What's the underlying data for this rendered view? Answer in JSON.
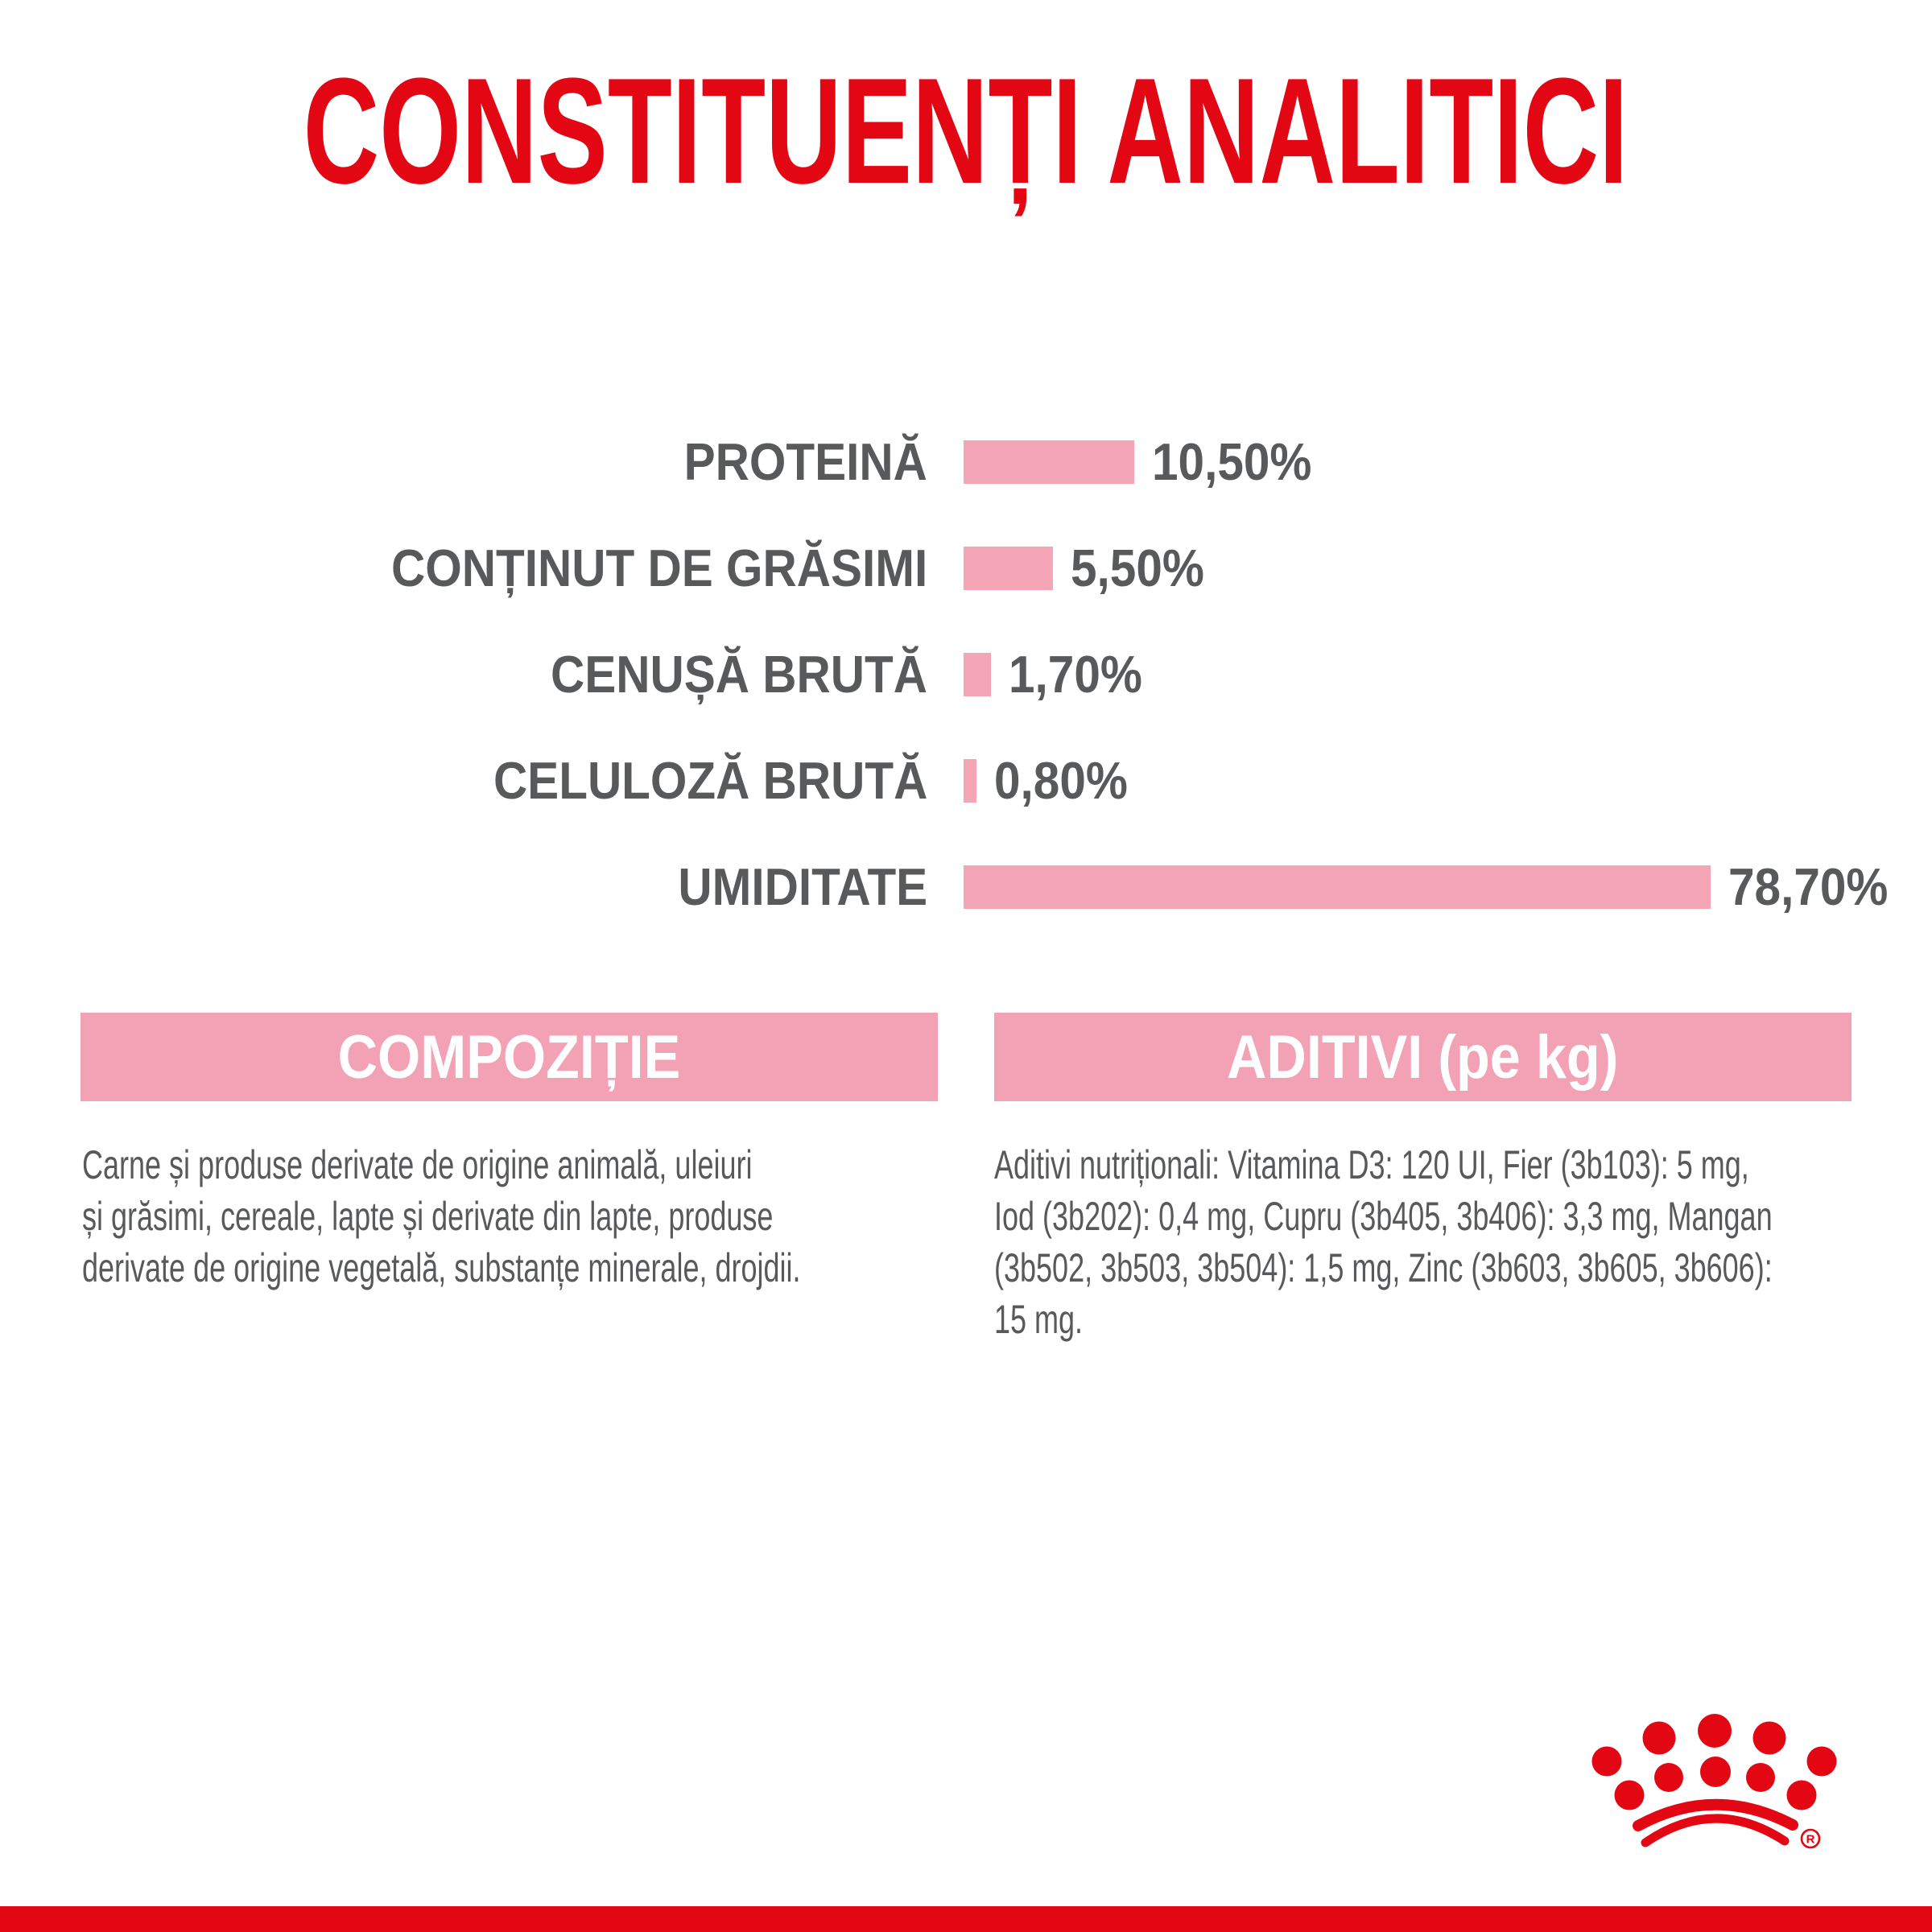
{
  "page": {
    "title": "CONSTITUENȚI ANALITICI"
  },
  "colors": {
    "accent_red": "#E30613",
    "bar_pink": "#F4A6B7",
    "header_pink": "#F2A2B4",
    "text_gray": "#58595B",
    "header_text_white": "#FFFFFF",
    "background": "#FFFFFF"
  },
  "chart_data": {
    "type": "bar",
    "orientation": "horizontal",
    "title": "CONSTITUENȚI ANALITICI",
    "categories": [
      "PROTEINĂ",
      "CONȚINUT DE GRĂSIMI",
      "CENUȘĂ BRUTĂ",
      "CELULOZĂ BRUTĂ",
      "UMIDITATE"
    ],
    "values": [
      10.5,
      5.5,
      1.7,
      0.8,
      78.7
    ],
    "value_labels": [
      "10,50%",
      "5,50%",
      "1,70%",
      "0,80%",
      "78,70%"
    ],
    "unit": "%",
    "bar_color": "#F4A6B7",
    "axes": "none",
    "gridlines": false,
    "legend": "none",
    "value_label_position": "right-of-bar",
    "note": "bar lengths proportional except UMIDITATE bar visually capped"
  },
  "sections": {
    "composition": {
      "header": "COMPOZIȚIE",
      "lines": [
        "Carne și produse derivate de origine animală, uleiuri",
        "și grăsimi, cereale, lapte și derivate din lapte, produse",
        "derivate de origine vegetală, substanțe minerale, drojdii."
      ]
    },
    "additives": {
      "header": "ADITIVI (pe kg)",
      "lines": [
        "Aditivi nutriționali: Vitamina D3: 120 UI, Fier (3b103): 5 mg,",
        "Iod (3b202): 0,4 mg, Cupru (3b405, 3b406): 3,3 mg, Mangan",
        "(3b502, 3b503, 3b504): 1,5 mg, Zinc (3b603, 3b605, 3b606):",
        "15 mg."
      ]
    }
  },
  "footer": {
    "logo": "royal-canin-crown",
    "registered_mark": "R"
  }
}
